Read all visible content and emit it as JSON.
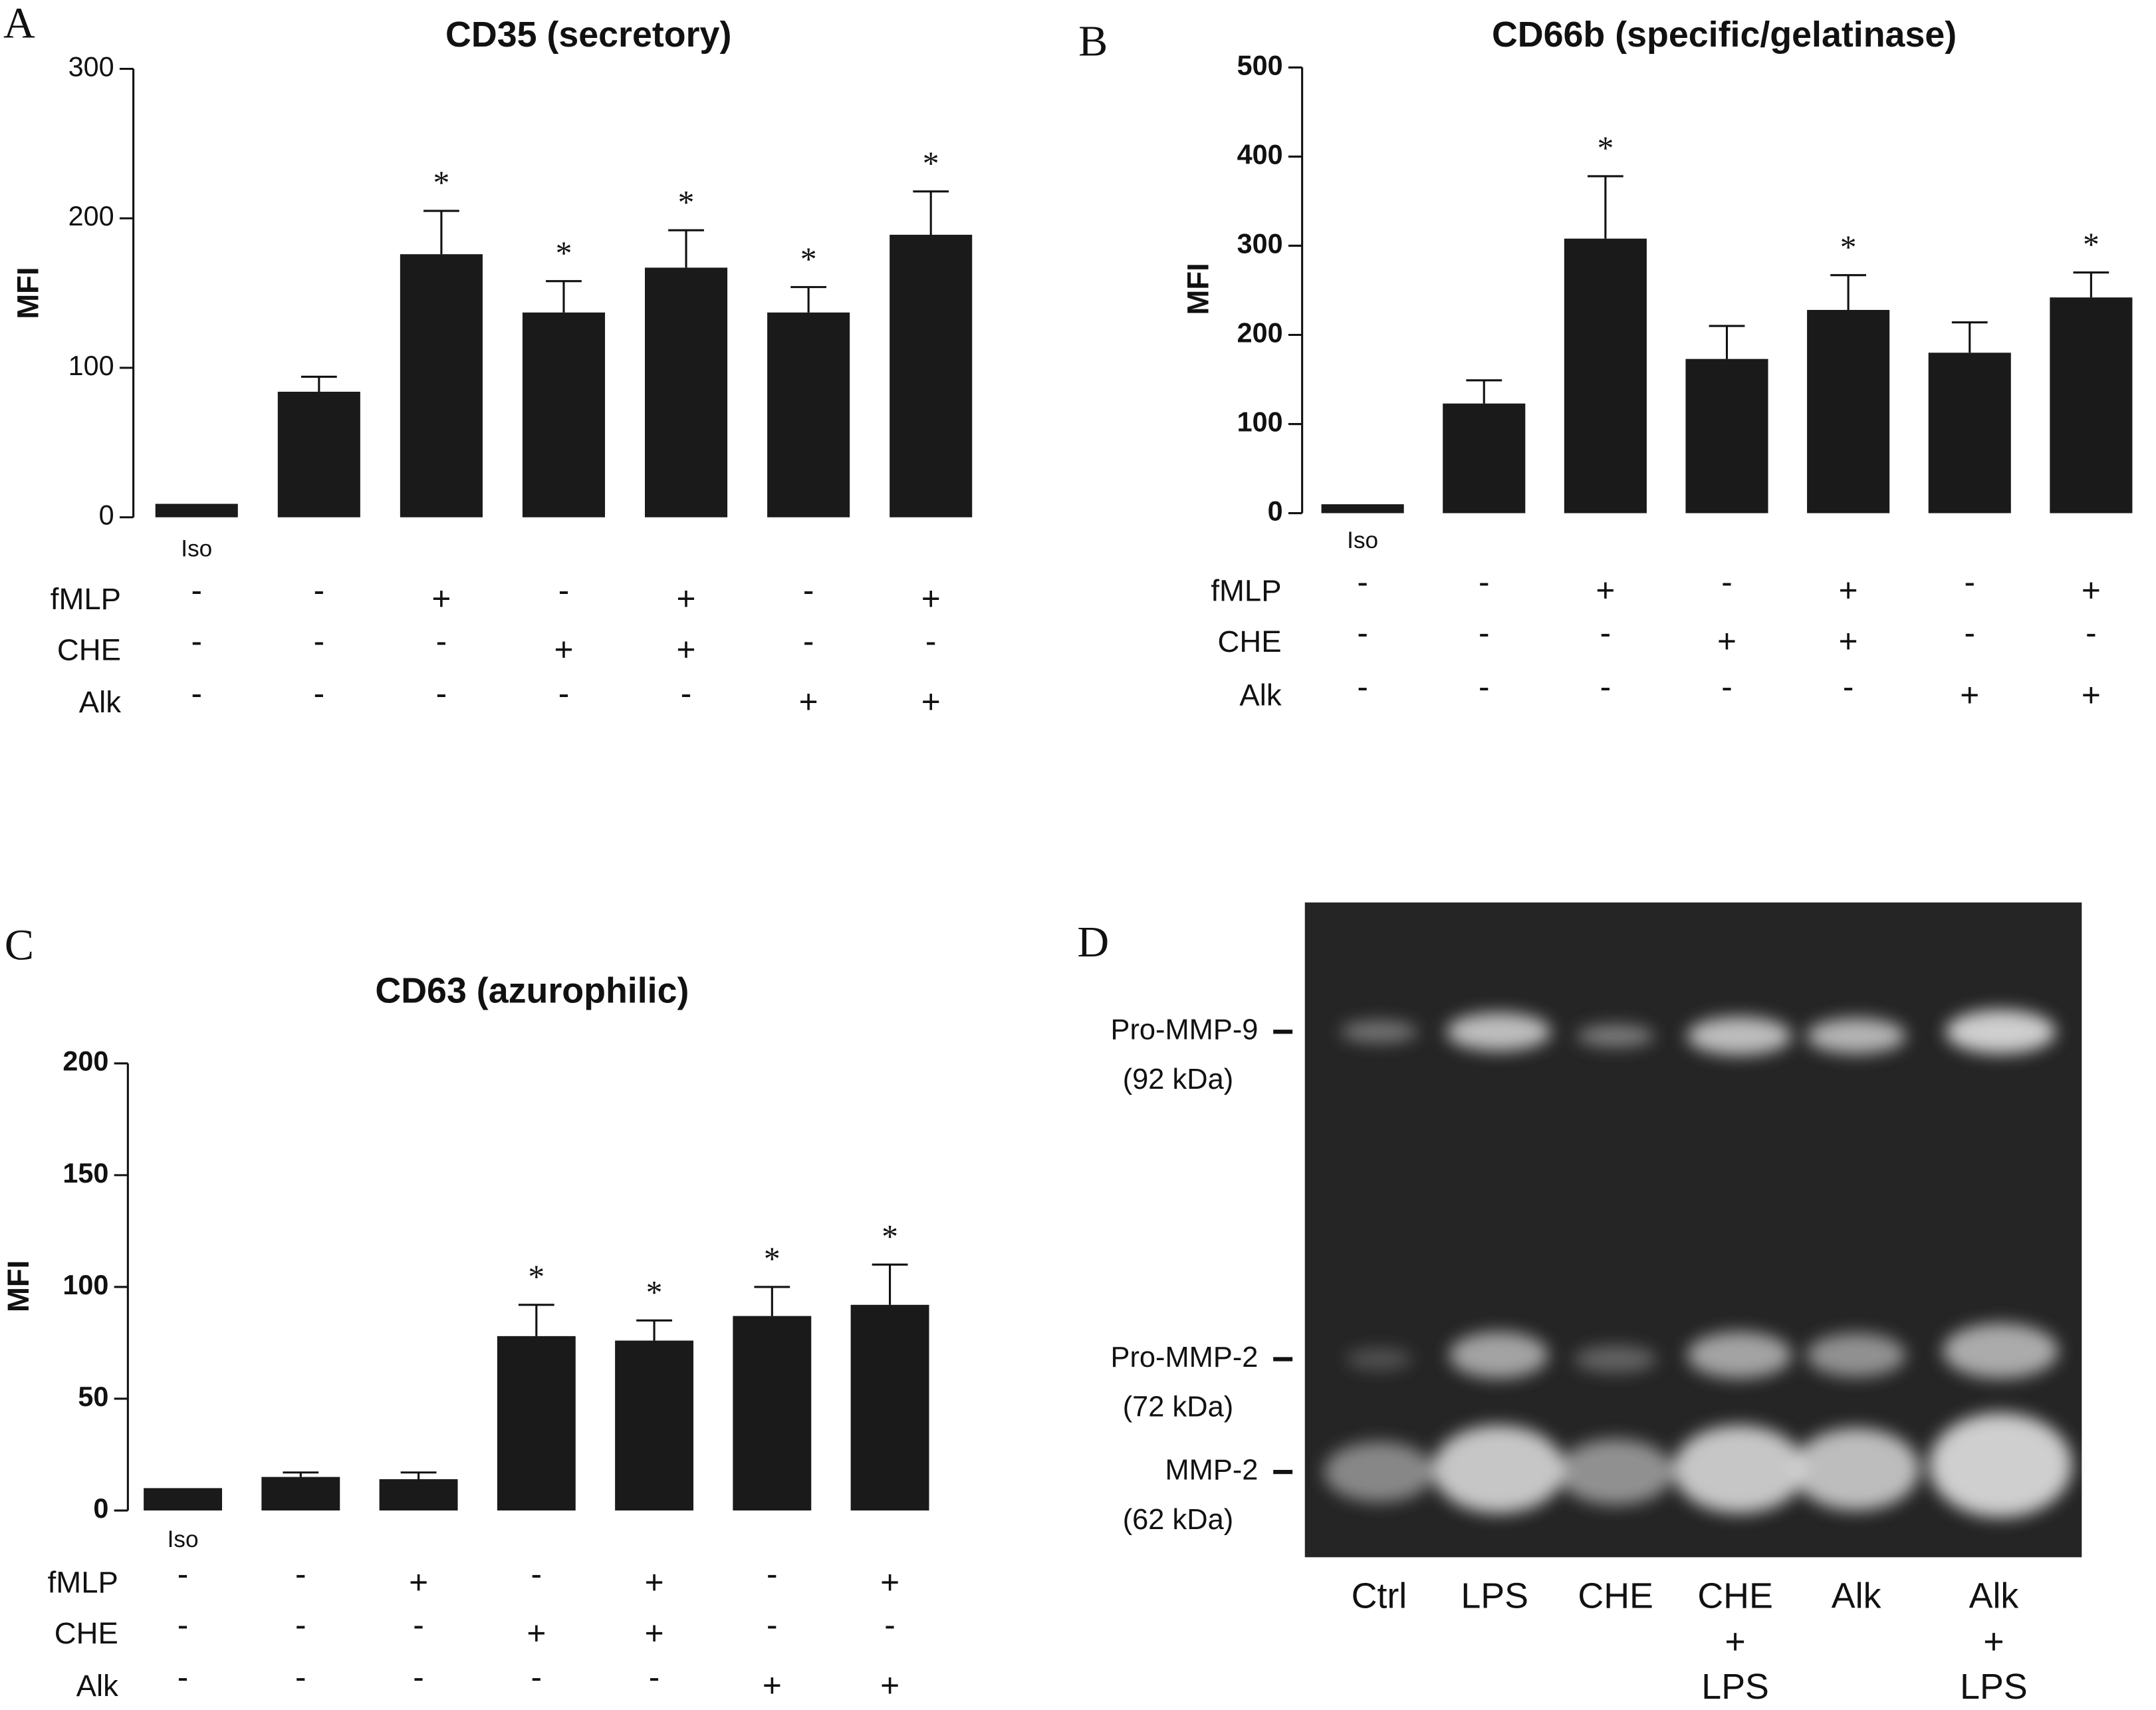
{
  "chart_data": [
    {
      "type": "bar",
      "panel": "A",
      "title": "CD35 (secretory)",
      "ylabel": "MFI",
      "color": "#1a1a1a",
      "categories": [
        "Iso",
        null,
        null,
        null,
        null,
        null,
        null
      ],
      "values": [
        9,
        84,
        176,
        137,
        167,
        137,
        189
      ],
      "errors": [
        null,
        10,
        29,
        21,
        25,
        17,
        29
      ],
      "annotations": [
        null,
        null,
        "*",
        "*",
        "*",
        "*",
        "*"
      ],
      "ylim": [
        0,
        300
      ],
      "yticks": [
        0,
        100,
        200,
        300
      ],
      "conditions": [
        {
          "name": "fMLP",
          "marks": [
            "-",
            "-",
            "+",
            "-",
            "+",
            "-",
            "+"
          ]
        },
        {
          "name": "CHE",
          "marks": [
            "-",
            "-",
            "-",
            "+",
            "+",
            "-",
            "-"
          ]
        },
        {
          "name": "Alk",
          "marks": [
            "-",
            "-",
            "-",
            "-",
            "-",
            "+",
            "+"
          ]
        }
      ]
    },
    {
      "type": "bar",
      "panel": "B",
      "title": "CD66b (specific/gelatinase)",
      "ylabel": "MFI",
      "color": "#1a1a1a",
      "categories": [
        "Iso",
        null,
        null,
        null,
        null,
        null,
        null
      ],
      "values": [
        10,
        123,
        308,
        173,
        228,
        180,
        242
      ],
      "errors": [
        null,
        26,
        70,
        37,
        39,
        34,
        28
      ],
      "annotations": [
        null,
        null,
        "*",
        null,
        "*",
        null,
        "*"
      ],
      "ylim": [
        0,
        500
      ],
      "yticks": [
        0,
        100,
        200,
        300,
        400,
        500
      ],
      "conditions": [
        {
          "name": "fMLP",
          "marks": [
            "-",
            "-",
            "+",
            "-",
            "+",
            "-",
            "+"
          ]
        },
        {
          "name": "CHE",
          "marks": [
            "-",
            "-",
            "-",
            "+",
            "+",
            "-",
            "-"
          ]
        },
        {
          "name": "Alk",
          "marks": [
            "-",
            "-",
            "-",
            "-",
            "-",
            "+",
            "+"
          ]
        }
      ]
    },
    {
      "type": "bar",
      "panel": "C",
      "title": "CD63 (azurophilic)",
      "ylabel": "MFI",
      "color": "#1a1a1a",
      "categories": [
        "Iso",
        null,
        null,
        null,
        null,
        null,
        null
      ],
      "values": [
        10,
        15,
        14,
        78,
        76,
        87,
        92
      ],
      "errors": [
        null,
        2,
        3,
        14,
        9,
        13,
        18
      ],
      "annotations": [
        null,
        null,
        null,
        "*",
        "*",
        "*",
        "*"
      ],
      "ylim": [
        0,
        200
      ],
      "yticks": [
        0,
        50,
        100,
        150,
        200
      ],
      "conditions": [
        {
          "name": "fMLP",
          "marks": [
            "-",
            "-",
            "+",
            "-",
            "+",
            "-",
            "+"
          ]
        },
        {
          "name": "CHE",
          "marks": [
            "-",
            "-",
            "-",
            "+",
            "+",
            "-",
            "-"
          ]
        },
        {
          "name": "Alk",
          "marks": [
            "-",
            "-",
            "-",
            "-",
            "-",
            "+",
            "+"
          ]
        }
      ]
    }
  ],
  "gel": {
    "panel": "D",
    "bands": [
      {
        "name": "Pro-MMP-9",
        "size": "(92 kDa)"
      },
      {
        "name": "Pro-MMP-2",
        "size": "(72 kDa)"
      },
      {
        "name": "MMP-2",
        "size": "(62 kDa)"
      }
    ],
    "lanes": [
      [
        "Ctrl"
      ],
      [
        "LPS"
      ],
      [
        "CHE"
      ],
      [
        "CHE",
        "+",
        "LPS"
      ],
      [
        "Alk"
      ],
      [
        "Alk",
        "+",
        "LPS"
      ]
    ]
  }
}
